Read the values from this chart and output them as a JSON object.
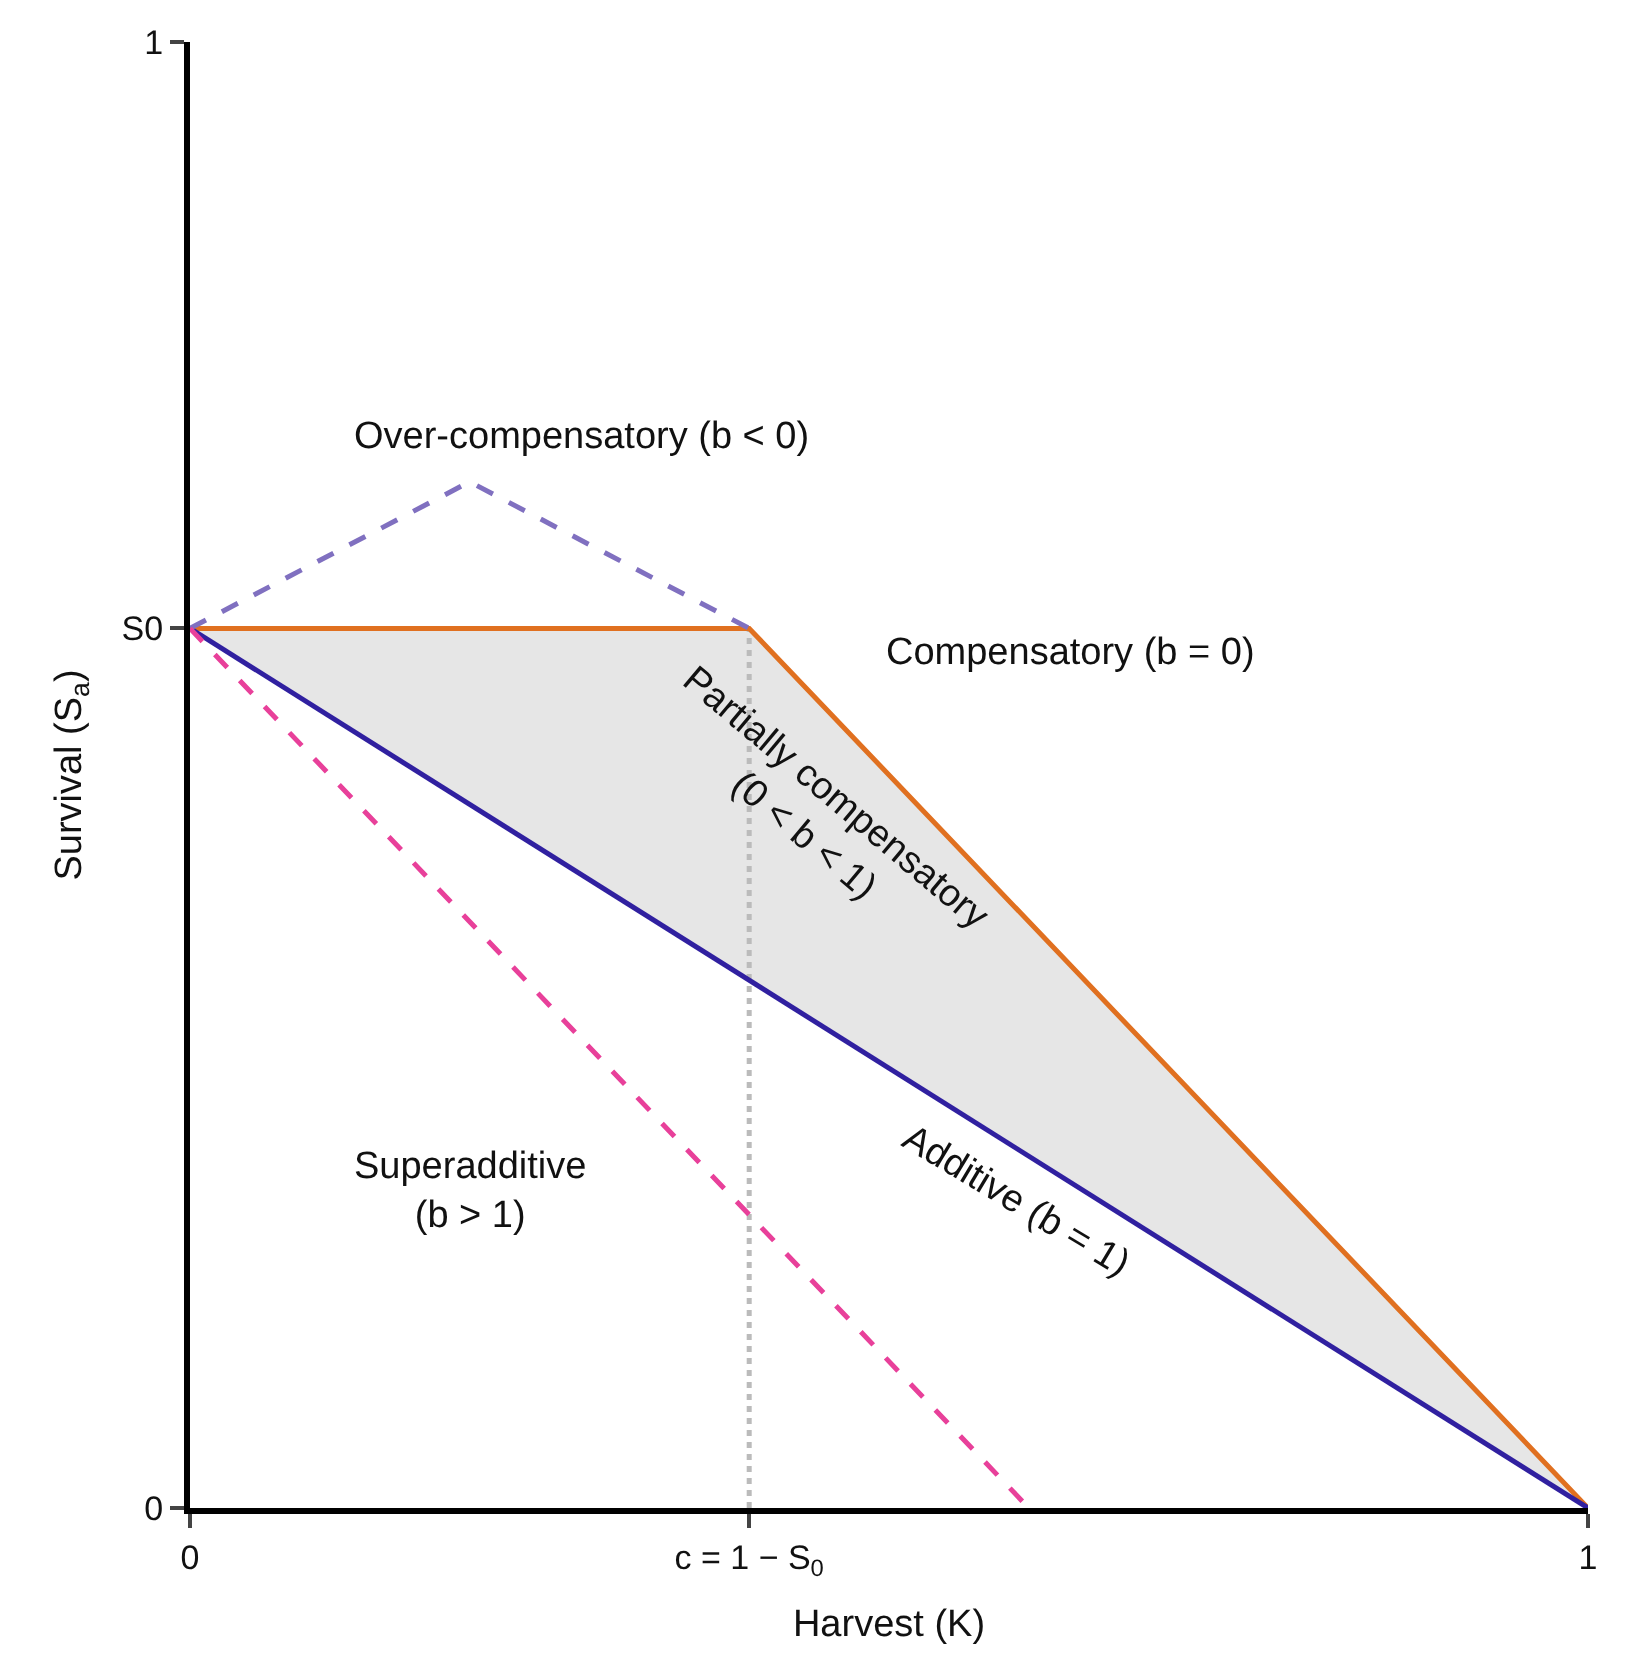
{
  "chart_data": {
    "type": "line",
    "xlabel": "Harvest (K)",
    "ylabel": "Survival (S$_{a}$)",
    "xlim": [
      0,
      1
    ],
    "ylim": [
      0,
      1
    ],
    "xticks": [
      0,
      {
        "value": 0.4,
        "label": "c = 1 − S$_{0}$"
      },
      1
    ],
    "yticks": [
      0,
      {
        "value": 0.6,
        "label": "S0"
      },
      1
    ],
    "legend": false,
    "marker": "none",
    "series": [
      {
        "x": [
          0.4,
          0.4
        ],
        "values": [
          0,
          0.6
        ],
        "color": "#bbbbbb",
        "line_style": "dotted"
      },
      {
        "name": "Compensatory (b = 0)",
        "x": [
          0,
          0.4,
          1
        ],
        "values": [
          0.6,
          0.6,
          0
        ],
        "lower": [
          0.6,
          0.36,
          0
        ],
        "upper": [
          0.6,
          0.6,
          0
        ],
        "color": "#e07020",
        "line_style": "solid"
      },
      {
        "name": "Additive (b = 1)",
        "x": [
          0,
          1
        ],
        "values": [
          0.6,
          0
        ],
        "color": "#3020a0",
        "line_style": "solid"
      },
      {
        "name": "Over-compensatory (b < 0)",
        "x": [
          0,
          0.2,
          0.4
        ],
        "values": [
          0.6,
          0.7,
          0.6
        ],
        "color": "#8070c0",
        "line_style": "dashed"
      },
      {
        "name": "Superadditive\n(b > 1)",
        "x": [
          0,
          0.6
        ],
        "values": [
          0.6,
          0
        ],
        "color": "#e8409a",
        "line_style": "dashed"
      }
    ],
    "annotations": [
      "Partially compensatory\n(0 < b < 1)"
    ]
  }
}
